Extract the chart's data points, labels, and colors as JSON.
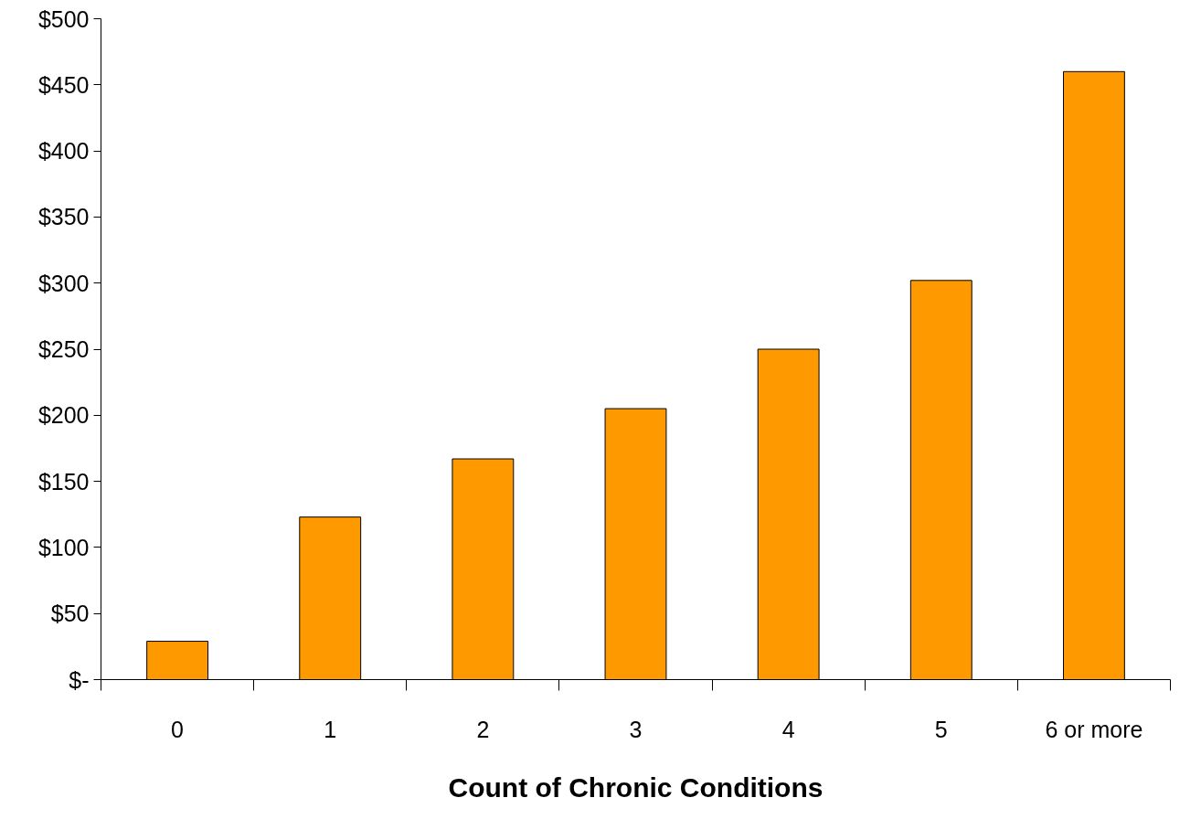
{
  "chart_data": {
    "type": "bar",
    "xlabel": "Count of Chronic Conditions",
    "categories": [
      "0",
      "1",
      "2",
      "3",
      "4",
      "5",
      "6 or more"
    ],
    "values": [
      29,
      123,
      167,
      205,
      250,
      302,
      460
    ],
    "color": "#ff9900",
    "ylim": [
      0,
      500
    ],
    "yticks": [
      {
        "value": 0,
        "label": "$-"
      },
      {
        "value": 50,
        "label": "$50"
      },
      {
        "value": 100,
        "label": "$100"
      },
      {
        "value": 150,
        "label": "$150"
      },
      {
        "value": 200,
        "label": "$200"
      },
      {
        "value": 250,
        "label": "$250"
      },
      {
        "value": 300,
        "label": "$300"
      },
      {
        "value": 350,
        "label": "$350"
      },
      {
        "value": 400,
        "label": "$400"
      },
      {
        "value": 450,
        "label": "$450"
      },
      {
        "value": 500,
        "label": "$500"
      }
    ],
    "grid": false
  }
}
